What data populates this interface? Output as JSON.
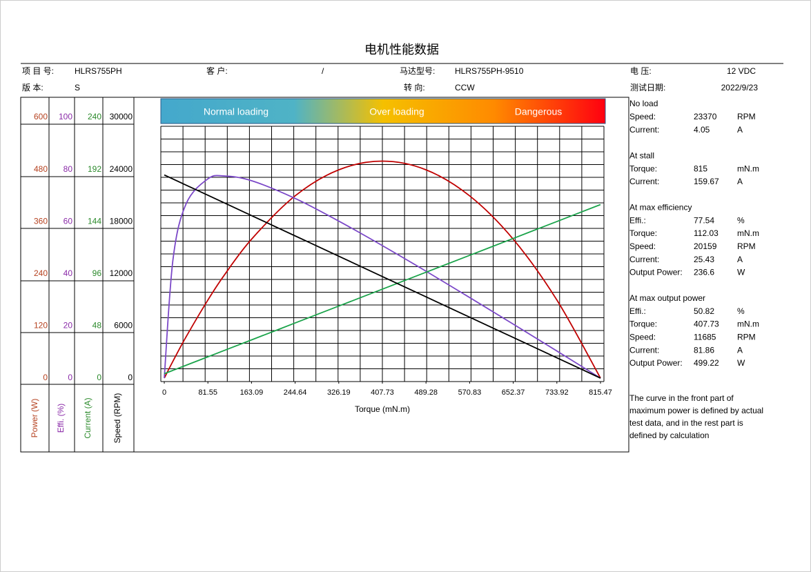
{
  "header": {
    "title": "电机性能数据",
    "fields": [
      {
        "label": "项 目 号:",
        "value": "HLRS755PH"
      },
      {
        "label": "客 户:",
        "value": "/"
      },
      {
        "label": "马达型号:",
        "value": "HLRS755PH-9510"
      },
      {
        "label": "电 压:",
        "value": "12 VDC"
      },
      {
        "label": "版 本:",
        "value": "S"
      },
      {
        "label": "转 向:",
        "value": "CCW"
      },
      {
        "label": "测试日期:",
        "value": "2022/9/23"
      }
    ]
  },
  "chart_data": {
    "type": "line",
    "zones": [
      "Normal loading",
      "Over loading",
      "Dangerous"
    ],
    "x_label": "Torque (mN.m)",
    "xlim": [
      0,
      815.47
    ],
    "xticks": [
      0,
      81.55,
      163.09,
      244.64,
      326.19,
      407.73,
      489.28,
      570.83,
      652.37,
      733.92,
      815.47
    ],
    "grid": true,
    "y_axes": [
      {
        "label": "Power (W)",
        "color": "#b5411f",
        "ylim": [
          0,
          600
        ],
        "yticks": [
          0,
          120,
          240,
          360,
          480,
          600
        ]
      },
      {
        "label": "Effi.  (%)",
        "color": "#8a2aa8",
        "ylim": [
          0,
          100
        ],
        "yticks": [
          0,
          20,
          40,
          60,
          80,
          100
        ]
      },
      {
        "label": "Current (A)",
        "color": "#2b8a2b",
        "ylim": [
          0,
          240
        ],
        "yticks": [
          0,
          48,
          96,
          144,
          192,
          240
        ]
      },
      {
        "label": "Speed (RPM)",
        "color": "#000000",
        "ylim": [
          0,
          30000
        ],
        "yticks": [
          0,
          6000,
          12000,
          18000,
          24000,
          30000
        ]
      }
    ],
    "x": [
      0,
      16.31,
      40.77,
      81.55,
      112.03,
      163.09,
      244.64,
      326.19,
      407.73,
      489.28,
      570.83,
      652.37,
      733.92,
      815.47
    ],
    "series": [
      {
        "axis": 0,
        "color": "#c00000",
        "values": [
          0,
          39.1,
          94.9,
          179.7,
          236.6,
          319.5,
          419.3,
          479.2,
          499.2,
          479.2,
          419.3,
          319.5,
          179.7,
          0
        ]
      },
      {
        "axis": 1,
        "color": "#7b48c8",
        "values": [
          0,
          45.5,
          66.8,
          76.4,
          77.5,
          75.7,
          68.9,
          60.2,
          50.8,
          41.0,
          30.9,
          20.7,
          10.4,
          0
        ]
      },
      {
        "axis": 2,
        "color": "#1aa34a",
        "values": [
          4.05,
          7.16,
          11.83,
          19.61,
          25.43,
          35.17,
          50.74,
          66.3,
          81.86,
          97.42,
          112.98,
          128.55,
          144.11,
          159.67
        ]
      },
      {
        "axis": 3,
        "color": "#000000",
        "values": [
          23370,
          22903,
          22202,
          21033,
          20159,
          18696,
          16359,
          14022,
          11685,
          9348,
          7011,
          4674,
          2337,
          0
        ]
      }
    ]
  },
  "specs": [
    {
      "title": "No load",
      "rows": [
        {
          "label": "Speed:",
          "value": 23370,
          "unit": "RPM"
        },
        {
          "label": "Current:",
          "value": 4.05,
          "unit": "A"
        }
      ]
    },
    {
      "title": "At stall",
      "rows": [
        {
          "label": "Torque:",
          "value": 815,
          "unit": "mN.m"
        },
        {
          "label": "Current:",
          "value": 159.67,
          "unit": "A"
        }
      ]
    },
    {
      "title": "At max efficiency",
      "rows": [
        {
          "label": "Effi.:",
          "value": 77.54,
          "unit": "%"
        },
        {
          "label": "Torque:",
          "value": 112.03,
          "unit": "mN.m"
        },
        {
          "label": "Speed:",
          "value": 20159,
          "unit": "RPM"
        },
        {
          "label": "Current:",
          "value": 25.43,
          "unit": "A"
        },
        {
          "label": "Output Power:",
          "value": 236.6,
          "unit": "W"
        }
      ]
    },
    {
      "title": "At max output power",
      "rows": [
        {
          "label": "Effi.:",
          "value": 50.82,
          "unit": "%"
        },
        {
          "label": "Torque:",
          "value": 407.73,
          "unit": "mN.m"
        },
        {
          "label": "Speed:",
          "value": 11685,
          "unit": "RPM"
        },
        {
          "label": "Current:",
          "value": 81.86,
          "unit": "A"
        },
        {
          "label": "Output Power:",
          "value": 499.22,
          "unit": "W"
        }
      ]
    }
  ],
  "note": [
    "The curve in the front part of",
    "maximum power is defined by actual",
    "test data, and in the rest part is",
    "defined by calculation"
  ]
}
